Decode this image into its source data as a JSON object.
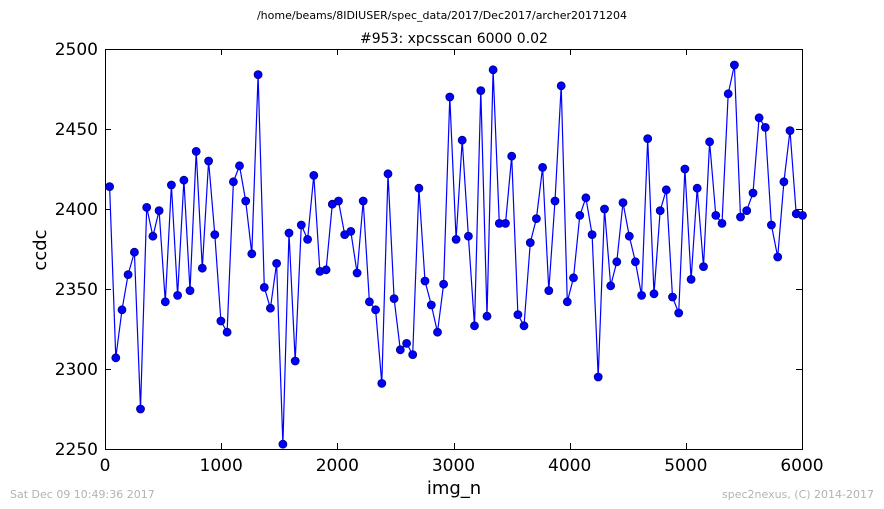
{
  "figure": {
    "suptitle": "/home/beams/8IDIUSER/spec_data/2017/Dec2017/archer20171204",
    "footer_left": "Sat Dec 09 10:49:36 2017",
    "footer_right": "spec2nexus, (C) 2014-2017"
  },
  "chart_data": {
    "type": "line",
    "title": "#953: xpcsscan 6000 0.02",
    "xlabel": "img_n",
    "ylabel": "ccdc",
    "xlim": [
      0,
      6000
    ],
    "ylim": [
      2250,
      2500
    ],
    "xticks": [
      0,
      1000,
      2000,
      3000,
      4000,
      5000,
      6000
    ],
    "yticks": [
      2250,
      2300,
      2350,
      2400,
      2450,
      2500
    ],
    "xtick_labels": [
      "0",
      "1000",
      "2000",
      "3000",
      "4000",
      "5000",
      "6000"
    ],
    "ytick_labels": [
      "2250",
      "2300",
      "2350",
      "2400",
      "2450",
      "2500"
    ],
    "grid": false,
    "legend": "none",
    "color": "#0000ff",
    "marker": "circle",
    "series": [
      {
        "x": [
          40,
          93,
          146,
          199,
          253,
          306,
          359,
          412,
          466,
          519,
          572,
          625,
          679,
          732,
          785,
          838,
          892,
          945,
          998,
          1051,
          1105,
          1158,
          1211,
          1264,
          1318,
          1371,
          1424,
          1477,
          1531,
          1584,
          1637,
          1690,
          1744,
          1797,
          1850,
          1903,
          1957,
          2010,
          2063,
          2116,
          2170,
          2223,
          2276,
          2329,
          2383,
          2436,
          2489,
          2542,
          2596,
          2649,
          2702,
          2755,
          2809,
          2862,
          2915,
          2968,
          3022,
          3075,
          3128,
          3181,
          3235,
          3288,
          3341,
          3394,
          3448,
          3501,
          3554,
          3607,
          3661,
          3714,
          3767,
          3820,
          3874,
          3927,
          3980,
          4033,
          4087,
          4140,
          4193,
          4246,
          4300,
          4353,
          4406,
          4459,
          4513,
          4566,
          4619,
          4672,
          4726,
          4779,
          4832,
          4885,
          4939,
          4992,
          5045,
          5098,
          5152,
          5205,
          5258,
          5311,
          5365,
          5418,
          5471,
          5524,
          5578,
          5631,
          5684,
          5737,
          5791,
          5844,
          5897,
          5950,
          6004
        ],
        "values": [
          2414,
          2307,
          2337,
          2359,
          2373,
          2275,
          2401,
          2383,
          2399,
          2342,
          2415,
          2346,
          2418,
          2349,
          2436,
          2363,
          2430,
          2384,
          2330,
          2323,
          2417,
          2427,
          2405,
          2372,
          2484,
          2351,
          2338,
          2366,
          2253,
          2385,
          2305,
          2390,
          2381,
          2421,
          2361,
          2362,
          2403,
          2405,
          2384,
          2386,
          2360,
          2405,
          2342,
          2337,
          2291,
          2422,
          2344,
          2312,
          2316,
          2309,
          2413,
          2355,
          2340,
          2323,
          2353,
          2470,
          2381,
          2443,
          2383,
          2327,
          2474,
          2333,
          2487,
          2391,
          2391,
          2433,
          2334,
          2327,
          2379,
          2394,
          2426,
          2349,
          2405,
          2477,
          2342,
          2357,
          2396,
          2407,
          2384,
          2295,
          2400,
          2352,
          2367,
          2404,
          2383,
          2367,
          2346,
          2444,
          2347,
          2399,
          2412,
          2345,
          2335,
          2425,
          2356,
          2413,
          2364,
          2442,
          2396,
          2391,
          2472,
          2490,
          2395,
          2399,
          2410,
          2457,
          2451,
          2390,
          2370,
          2417,
          2449,
          2397,
          2396
        ]
      }
    ]
  }
}
